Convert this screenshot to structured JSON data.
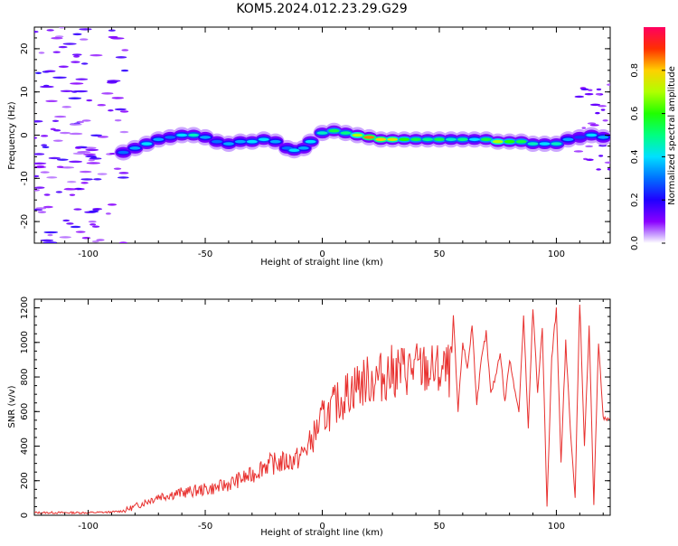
{
  "title": "KOM5.2024.012.23.29.G29",
  "chart_data": [
    {
      "type": "heatmap",
      "xlabel": "Height of straight line (km)",
      "ylabel": "Frequency (Hz)",
      "xlim": [
        -123,
        123
      ],
      "ylim": [
        -25,
        25
      ],
      "xticks": [
        -100,
        -50,
        0,
        50,
        100
      ],
      "yticks": [
        -20,
        -10,
        0,
        10,
        20
      ],
      "colorbar": {
        "label": "Normalized spectral amplitude",
        "range": [
          0.0,
          1.0
        ],
        "ticks": [
          "0.0",
          "0.2",
          "0.4",
          "0.6",
          "0.8"
        ]
      },
      "ridge": [
        {
          "x": -85,
          "f": -4.0,
          "amp": 0.3
        },
        {
          "x": -80,
          "f": -3.0,
          "amp": 0.35
        },
        {
          "x": -75,
          "f": -2.0,
          "amp": 0.4
        },
        {
          "x": -70,
          "f": -1.0,
          "amp": 0.35
        },
        {
          "x": -65,
          "f": -0.5,
          "amp": 0.3
        },
        {
          "x": -60,
          "f": 0.0,
          "amp": 0.4
        },
        {
          "x": -55,
          "f": 0.0,
          "amp": 0.45
        },
        {
          "x": -50,
          "f": -0.5,
          "amp": 0.35
        },
        {
          "x": -45,
          "f": -1.5,
          "amp": 0.3
        },
        {
          "x": -40,
          "f": -2.0,
          "amp": 0.35
        },
        {
          "x": -35,
          "f": -1.5,
          "amp": 0.35
        },
        {
          "x": -30,
          "f": -1.5,
          "amp": 0.4
        },
        {
          "x": -25,
          "f": -1.0,
          "amp": 0.4
        },
        {
          "x": -20,
          "f": -1.5,
          "amp": 0.35
        },
        {
          "x": -15,
          "f": -3.0,
          "amp": 0.3
        },
        {
          "x": -12,
          "f": -3.5,
          "amp": 0.4
        },
        {
          "x": -8,
          "f": -3.0,
          "amp": 0.35
        },
        {
          "x": -5,
          "f": -1.5,
          "amp": 0.4
        },
        {
          "x": 0,
          "f": 0.5,
          "amp": 0.45
        },
        {
          "x": 5,
          "f": 1.0,
          "amp": 0.55
        },
        {
          "x": 10,
          "f": 0.5,
          "amp": 0.5
        },
        {
          "x": 15,
          "f": 0.0,
          "amp": 0.7
        },
        {
          "x": 20,
          "f": -0.5,
          "amp": 0.85
        },
        {
          "x": 25,
          "f": -1.0,
          "amp": 0.8
        },
        {
          "x": 30,
          "f": -1.0,
          "amp": 0.75
        },
        {
          "x": 35,
          "f": -1.0,
          "amp": 0.6
        },
        {
          "x": 40,
          "f": -1.0,
          "amp": 0.55
        },
        {
          "x": 45,
          "f": -1.0,
          "amp": 0.5
        },
        {
          "x": 50,
          "f": -1.0,
          "amp": 0.55
        },
        {
          "x": 55,
          "f": -1.0,
          "amp": 0.45
        },
        {
          "x": 60,
          "f": -1.0,
          "amp": 0.5
        },
        {
          "x": 65,
          "f": -1.0,
          "amp": 0.4
        },
        {
          "x": 70,
          "f": -1.0,
          "amp": 0.55
        },
        {
          "x": 75,
          "f": -1.5,
          "amp": 0.7
        },
        {
          "x": 80,
          "f": -1.5,
          "amp": 0.6
        },
        {
          "x": 85,
          "f": -1.5,
          "amp": 0.55
        },
        {
          "x": 90,
          "f": -2.0,
          "amp": 0.45
        },
        {
          "x": 95,
          "f": -2.0,
          "amp": 0.4
        },
        {
          "x": 100,
          "f": -2.0,
          "amp": 0.45
        },
        {
          "x": 105,
          "f": -1.0,
          "amp": 0.35
        },
        {
          "x": 110,
          "f": -0.5,
          "amp": 0.25
        },
        {
          "x": 115,
          "f": 0.0,
          "amp": 0.4
        },
        {
          "x": 120,
          "f": -0.5,
          "amp": 0.35
        }
      ]
    },
    {
      "type": "line",
      "xlabel": "Height of straight line (km)",
      "ylabel": "SNR (v/v)",
      "xlim": [
        -123,
        123
      ],
      "ylim": [
        0,
        1250
      ],
      "xticks": [
        -100,
        -50,
        0,
        50,
        100
      ],
      "yticks": [
        0,
        200,
        400,
        600,
        800,
        1000,
        1200
      ],
      "series": [
        {
          "color": "#e8312f",
          "x": [
            -123,
            -110,
            -100,
            -90,
            -85,
            -80,
            -75,
            -70,
            -65,
            -60,
            -55,
            -50,
            -45,
            -40,
            -35,
            -30,
            -25,
            -20,
            -15,
            -10,
            -5,
            0,
            5,
            10,
            15,
            20,
            25,
            30,
            35,
            40,
            45,
            50,
            55,
            56,
            58,
            60,
            62,
            64,
            66,
            68,
            70,
            72,
            74,
            76,
            78,
            80,
            82,
            84,
            86,
            88,
            90,
            92,
            94,
            96,
            98,
            100,
            102,
            104,
            106,
            108,
            110,
            112,
            114,
            116,
            118,
            120,
            123
          ],
          "y": [
            15,
            15,
            15,
            18,
            25,
            50,
            80,
            110,
            120,
            130,
            140,
            150,
            160,
            180,
            210,
            230,
            290,
            300,
            310,
            330,
            420,
            560,
            630,
            700,
            760,
            780,
            800,
            830,
            840,
            850,
            840,
            830,
            830,
            1150,
            600,
            1000,
            850,
            1100,
            650,
            900,
            1050,
            700,
            800,
            950,
            650,
            900,
            750,
            600,
            1150,
            500,
            1200,
            700,
            1100,
            50,
            900,
            1200,
            300,
            1000,
            500,
            100,
            1240,
            400,
            1100,
            60,
            1000,
            560,
            550
          ]
        }
      ]
    }
  ]
}
